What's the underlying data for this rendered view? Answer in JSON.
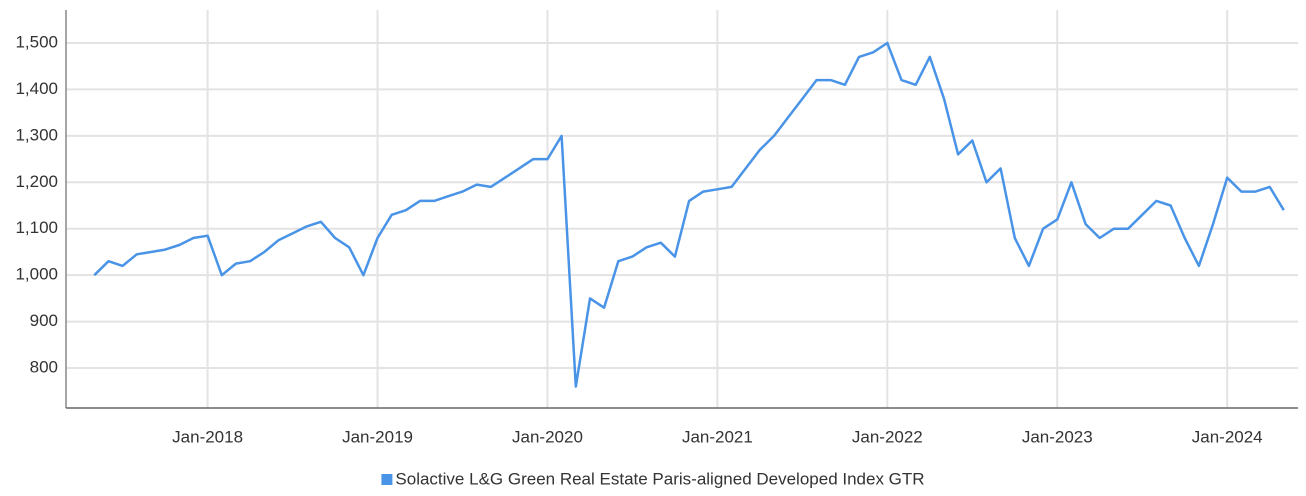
{
  "chart_data": {
    "type": "line",
    "x": [
      "2017-05",
      "2017-06",
      "2017-07",
      "2017-08",
      "2017-09",
      "2017-10",
      "2017-11",
      "2017-12",
      "2018-01",
      "2018-02",
      "2018-03",
      "2018-04",
      "2018-05",
      "2018-06",
      "2018-07",
      "2018-08",
      "2018-09",
      "2018-10",
      "2018-11",
      "2018-12",
      "2019-01",
      "2019-02",
      "2019-03",
      "2019-04",
      "2019-05",
      "2019-06",
      "2019-07",
      "2019-08",
      "2019-09",
      "2019-10",
      "2019-11",
      "2019-12",
      "2020-01",
      "2020-02",
      "2020-03",
      "2020-04",
      "2020-05",
      "2020-06",
      "2020-07",
      "2020-08",
      "2020-09",
      "2020-10",
      "2020-11",
      "2020-12",
      "2021-01",
      "2021-02",
      "2021-03",
      "2021-04",
      "2021-05",
      "2021-06",
      "2021-07",
      "2021-08",
      "2021-09",
      "2021-10",
      "2021-11",
      "2021-12",
      "2022-01",
      "2022-02",
      "2022-03",
      "2022-04",
      "2022-05",
      "2022-06",
      "2022-07",
      "2022-08",
      "2022-09",
      "2022-10",
      "2022-11",
      "2022-12",
      "2023-01",
      "2023-02",
      "2023-03",
      "2023-04",
      "2023-05",
      "2023-06",
      "2023-07",
      "2023-08",
      "2023-09",
      "2023-10",
      "2023-11",
      "2023-12",
      "2024-01",
      "2024-02",
      "2024-03",
      "2024-04",
      "2024-05"
    ],
    "series": [
      {
        "name": "Solactive L&G Green Real Estate Paris-aligned Developed Index GTR",
        "color": "#4a94e8",
        "values": [
          1000,
          1030,
          1020,
          1045,
          1050,
          1055,
          1065,
          1080,
          1085,
          1000,
          1025,
          1030,
          1050,
          1075,
          1090,
          1105,
          1115,
          1080,
          1060,
          1000,
          1080,
          1130,
          1140,
          1160,
          1160,
          1170,
          1180,
          1195,
          1190,
          1210,
          1230,
          1250,
          1250,
          1300,
          760,
          950,
          930,
          1030,
          1040,
          1060,
          1070,
          1040,
          1160,
          1180,
          1185,
          1190,
          1230,
          1270,
          1300,
          1340,
          1380,
          1420,
          1420,
          1410,
          1470,
          1480,
          1500,
          1420,
          1410,
          1470,
          1380,
          1260,
          1290,
          1200,
          1230,
          1080,
          1020,
          1100,
          1120,
          1200,
          1110,
          1080,
          1100,
          1100,
          1130,
          1160,
          1150,
          1080,
          1020,
          1110,
          1210,
          1180,
          1180,
          1190,
          1140
        ]
      }
    ],
    "xlim": [
      "2017-03",
      "2024-06"
    ],
    "xticks": [
      {
        "value": "2018-01",
        "label": "Jan-2018"
      },
      {
        "value": "2019-01",
        "label": "Jan-2019"
      },
      {
        "value": "2020-01",
        "label": "Jan-2020"
      },
      {
        "value": "2021-01",
        "label": "Jan-2021"
      },
      {
        "value": "2022-01",
        "label": "Jan-2022"
      },
      {
        "value": "2023-01",
        "label": "Jan-2023"
      },
      {
        "value": "2024-01",
        "label": "Jan-2024"
      }
    ],
    "ylim": [
      714,
      1571
    ],
    "yticks": [
      800,
      900,
      {
        "value": 1000,
        "label": "1,000"
      },
      {
        "value": 1100,
        "label": "1,100"
      },
      {
        "value": 1200,
        "label": "1,200"
      },
      {
        "value": 1300,
        "label": "1,300"
      },
      {
        "value": 1400,
        "label": "1,400"
      },
      {
        "value": 1500,
        "label": "1,500"
      }
    ],
    "grid": true,
    "legend": "bottom"
  }
}
